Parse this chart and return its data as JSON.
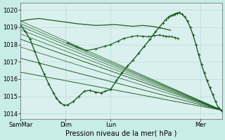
{
  "bg_color": "#c8ece8",
  "plot_bg": "#daf0ee",
  "grid_color": "#b0d8d4",
  "line_color": "#1a5c20",
  "xlabel": "Pression niveau de la mer( hPa )",
  "x_ticks": [
    0,
    48,
    96,
    192
  ],
  "x_tick_labels": [
    "SamMar",
    "Dim",
    "Lun",
    "Mer"
  ],
  "ylim": [
    1013.7,
    1020.4
  ],
  "xlim": [
    0,
    215
  ],
  "yticks": [
    1014,
    1015,
    1016,
    1017,
    1018,
    1019,
    1020
  ],
  "fan_lines": [
    {
      "y0": 1019.35,
      "y1": 1014.2
    },
    {
      "y0": 1019.2,
      "y1": 1014.2
    },
    {
      "y0": 1019.05,
      "y1": 1014.2
    },
    {
      "y0": 1018.85,
      "y1": 1014.2
    },
    {
      "y0": 1018.6,
      "y1": 1014.2
    },
    {
      "y0": 1018.3,
      "y1": 1014.2
    },
    {
      "y0": 1017.85,
      "y1": 1014.2
    },
    {
      "y0": 1017.2,
      "y1": 1014.2
    },
    {
      "y0": 1016.4,
      "y1": 1014.2
    }
  ],
  "upper_flat_x": [
    0,
    10,
    20,
    30,
    40,
    50,
    60,
    70,
    80,
    90,
    100,
    110,
    120,
    130,
    140,
    150,
    155,
    160
  ],
  "upper_flat_y": [
    1019.35,
    1019.45,
    1019.5,
    1019.42,
    1019.35,
    1019.28,
    1019.2,
    1019.15,
    1019.1,
    1019.12,
    1019.15,
    1019.1,
    1019.05,
    1019.1,
    1019.05,
    1018.95,
    1018.88,
    1018.82
  ],
  "main_curve_x": [
    0,
    5,
    10,
    15,
    20,
    25,
    30,
    35,
    38,
    42,
    46,
    50,
    56,
    62,
    68,
    74,
    80,
    86,
    90,
    96,
    102,
    108,
    114,
    120,
    126,
    132,
    138,
    144,
    148,
    152,
    155,
    157,
    159,
    161,
    163,
    165,
    167,
    169,
    172,
    175,
    178,
    181,
    184,
    187,
    190,
    193,
    196,
    199,
    202,
    205,
    208,
    211,
    214
  ],
  "main_curve_y": [
    1019.1,
    1018.75,
    1018.3,
    1017.6,
    1016.9,
    1016.3,
    1015.7,
    1015.2,
    1014.9,
    1014.65,
    1014.5,
    1014.5,
    1014.7,
    1015.0,
    1015.3,
    1015.35,
    1015.25,
    1015.2,
    1015.3,
    1015.4,
    1015.9,
    1016.35,
    1016.75,
    1017.1,
    1017.5,
    1017.9,
    1018.3,
    1018.75,
    1019.0,
    1019.25,
    1019.45,
    1019.55,
    1019.62,
    1019.68,
    1019.72,
    1019.78,
    1019.82,
    1019.85,
    1019.75,
    1019.6,
    1019.35,
    1019.0,
    1018.55,
    1018.0,
    1017.4,
    1016.85,
    1016.35,
    1015.9,
    1015.5,
    1015.1,
    1014.7,
    1014.35,
    1014.2
  ],
  "mid_curve_x": [
    50,
    60,
    70,
    80,
    90,
    96,
    104,
    110,
    118,
    124,
    130,
    136,
    142,
    148,
    152,
    155,
    158,
    161,
    165,
    168
  ],
  "mid_curve_y": [
    1018.1,
    1017.85,
    1017.65,
    1017.75,
    1017.9,
    1018.0,
    1018.2,
    1018.35,
    1018.45,
    1018.5,
    1018.48,
    1018.45,
    1018.5,
    1018.55,
    1018.5,
    1018.48,
    1018.45,
    1018.45,
    1018.4,
    1018.35
  ]
}
